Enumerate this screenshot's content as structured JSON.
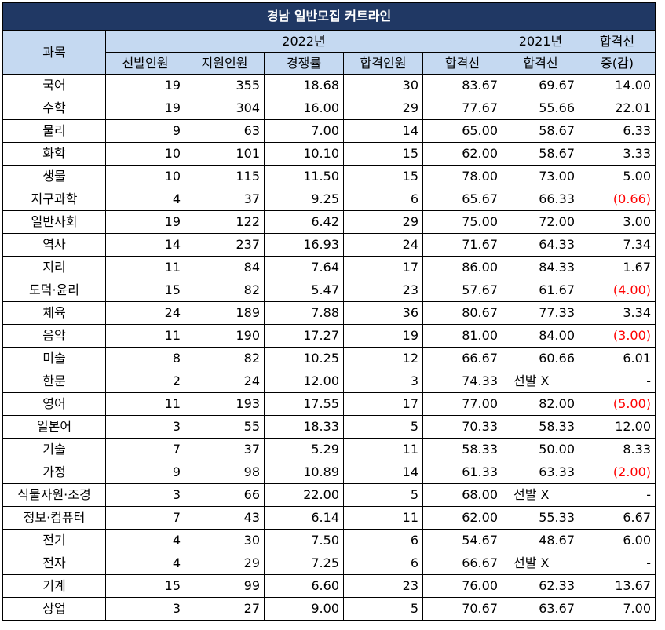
{
  "title": "경남 일반모집 커트라인",
  "headers": {
    "subject": "과목",
    "year2022": "2022년",
    "year2021": "2021년",
    "diff_line1": "합격선",
    "diff_line2": "증(감)",
    "selected": "선발인원",
    "applicants": "지원인원",
    "ratio": "경쟁률",
    "passed": "합격인원",
    "cutoff2022": "합격선",
    "cutoff2021": "합격선"
  },
  "rows": [
    {
      "subject": "국어",
      "selected": "19",
      "applicants": "355",
      "ratio": "18.68",
      "passed": "30",
      "cutoff2022": "83.67",
      "cutoff2021": "69.67",
      "diff": "14.00",
      "neg": false
    },
    {
      "subject": "수학",
      "selected": "19",
      "applicants": "304",
      "ratio": "16.00",
      "passed": "29",
      "cutoff2022": "77.67",
      "cutoff2021": "55.66",
      "diff": "22.01",
      "neg": false
    },
    {
      "subject": "물리",
      "selected": "9",
      "applicants": "63",
      "ratio": "7.00",
      "passed": "14",
      "cutoff2022": "65.00",
      "cutoff2021": "58.67",
      "diff": "6.33",
      "neg": false
    },
    {
      "subject": "화학",
      "selected": "10",
      "applicants": "101",
      "ratio": "10.10",
      "passed": "15",
      "cutoff2022": "62.00",
      "cutoff2021": "58.67",
      "diff": "3.33",
      "neg": false
    },
    {
      "subject": "생물",
      "selected": "10",
      "applicants": "115",
      "ratio": "11.50",
      "passed": "15",
      "cutoff2022": "78.00",
      "cutoff2021": "73.00",
      "diff": "5.00",
      "neg": false
    },
    {
      "subject": "지구과학",
      "selected": "4",
      "applicants": "37",
      "ratio": "9.25",
      "passed": "6",
      "cutoff2022": "65.67",
      "cutoff2021": "66.33",
      "diff": "(0.66)",
      "neg": true
    },
    {
      "subject": "일반사회",
      "selected": "19",
      "applicants": "122",
      "ratio": "6.42",
      "passed": "29",
      "cutoff2022": "75.00",
      "cutoff2021": "72.00",
      "diff": "3.00",
      "neg": false
    },
    {
      "subject": "역사",
      "selected": "14",
      "applicants": "237",
      "ratio": "16.93",
      "passed": "24",
      "cutoff2022": "71.67",
      "cutoff2021": "64.33",
      "diff": "7.34",
      "neg": false
    },
    {
      "subject": "지리",
      "selected": "11",
      "applicants": "84",
      "ratio": "7.64",
      "passed": "17",
      "cutoff2022": "86.00",
      "cutoff2021": "84.33",
      "diff": "1.67",
      "neg": false
    },
    {
      "subject": "도덕·윤리",
      "selected": "15",
      "applicants": "82",
      "ratio": "5.47",
      "passed": "23",
      "cutoff2022": "57.67",
      "cutoff2021": "61.67",
      "diff": "(4.00)",
      "neg": true
    },
    {
      "subject": "체육",
      "selected": "24",
      "applicants": "189",
      "ratio": "7.88",
      "passed": "36",
      "cutoff2022": "80.67",
      "cutoff2021": "77.33",
      "diff": "3.34",
      "neg": false
    },
    {
      "subject": "음악",
      "selected": "11",
      "applicants": "190",
      "ratio": "17.27",
      "passed": "19",
      "cutoff2022": "81.00",
      "cutoff2021": "84.00",
      "diff": "(3.00)",
      "neg": true
    },
    {
      "subject": "미술",
      "selected": "8",
      "applicants": "82",
      "ratio": "10.25",
      "passed": "12",
      "cutoff2022": "66.67",
      "cutoff2021": "60.66",
      "diff": "6.01",
      "neg": false
    },
    {
      "subject": "한문",
      "selected": "2",
      "applicants": "24",
      "ratio": "12.00",
      "passed": "3",
      "cutoff2022": "74.33",
      "cutoff2021": "선발 X",
      "diff": "-",
      "neg": false,
      "no_select": true
    },
    {
      "subject": "영어",
      "selected": "11",
      "applicants": "193",
      "ratio": "17.55",
      "passed": "17",
      "cutoff2022": "77.00",
      "cutoff2021": "82.00",
      "diff": "(5.00)",
      "neg": true
    },
    {
      "subject": "일본어",
      "selected": "3",
      "applicants": "55",
      "ratio": "18.33",
      "passed": "5",
      "cutoff2022": "70.33",
      "cutoff2021": "58.33",
      "diff": "12.00",
      "neg": false
    },
    {
      "subject": "기술",
      "selected": "7",
      "applicants": "37",
      "ratio": "5.29",
      "passed": "11",
      "cutoff2022": "58.33",
      "cutoff2021": "50.00",
      "diff": "8.33",
      "neg": false
    },
    {
      "subject": "가정",
      "selected": "9",
      "applicants": "98",
      "ratio": "10.89",
      "passed": "14",
      "cutoff2022": "61.33",
      "cutoff2021": "63.33",
      "diff": "(2.00)",
      "neg": true
    },
    {
      "subject": "식물자원·조경",
      "selected": "3",
      "applicants": "66",
      "ratio": "22.00",
      "passed": "5",
      "cutoff2022": "68.00",
      "cutoff2021": "선발 X",
      "diff": "-",
      "neg": false,
      "no_select": true
    },
    {
      "subject": "정보·컴퓨터",
      "selected": "7",
      "applicants": "43",
      "ratio": "6.14",
      "passed": "11",
      "cutoff2022": "62.00",
      "cutoff2021": "55.33",
      "diff": "6.67",
      "neg": false
    },
    {
      "subject": "전기",
      "selected": "4",
      "applicants": "30",
      "ratio": "7.50",
      "passed": "6",
      "cutoff2022": "54.67",
      "cutoff2021": "48.67",
      "diff": "6.00",
      "neg": false
    },
    {
      "subject": "전자",
      "selected": "4",
      "applicants": "29",
      "ratio": "7.25",
      "passed": "6",
      "cutoff2022": "66.67",
      "cutoff2021": "선발 X",
      "diff": "-",
      "neg": false,
      "no_select": true
    },
    {
      "subject": "기계",
      "selected": "15",
      "applicants": "99",
      "ratio": "6.60",
      "passed": "23",
      "cutoff2022": "76.00",
      "cutoff2021": "62.33",
      "diff": "13.67",
      "neg": false
    },
    {
      "subject": "상업",
      "selected": "3",
      "applicants": "27",
      "ratio": "9.00",
      "passed": "5",
      "cutoff2022": "70.67",
      "cutoff2021": "63.67",
      "diff": "7.00",
      "neg": false
    }
  ],
  "colors": {
    "title_bg": "#203864",
    "header_bg": "#c5d9f1",
    "negative_text": "#ff0000"
  }
}
